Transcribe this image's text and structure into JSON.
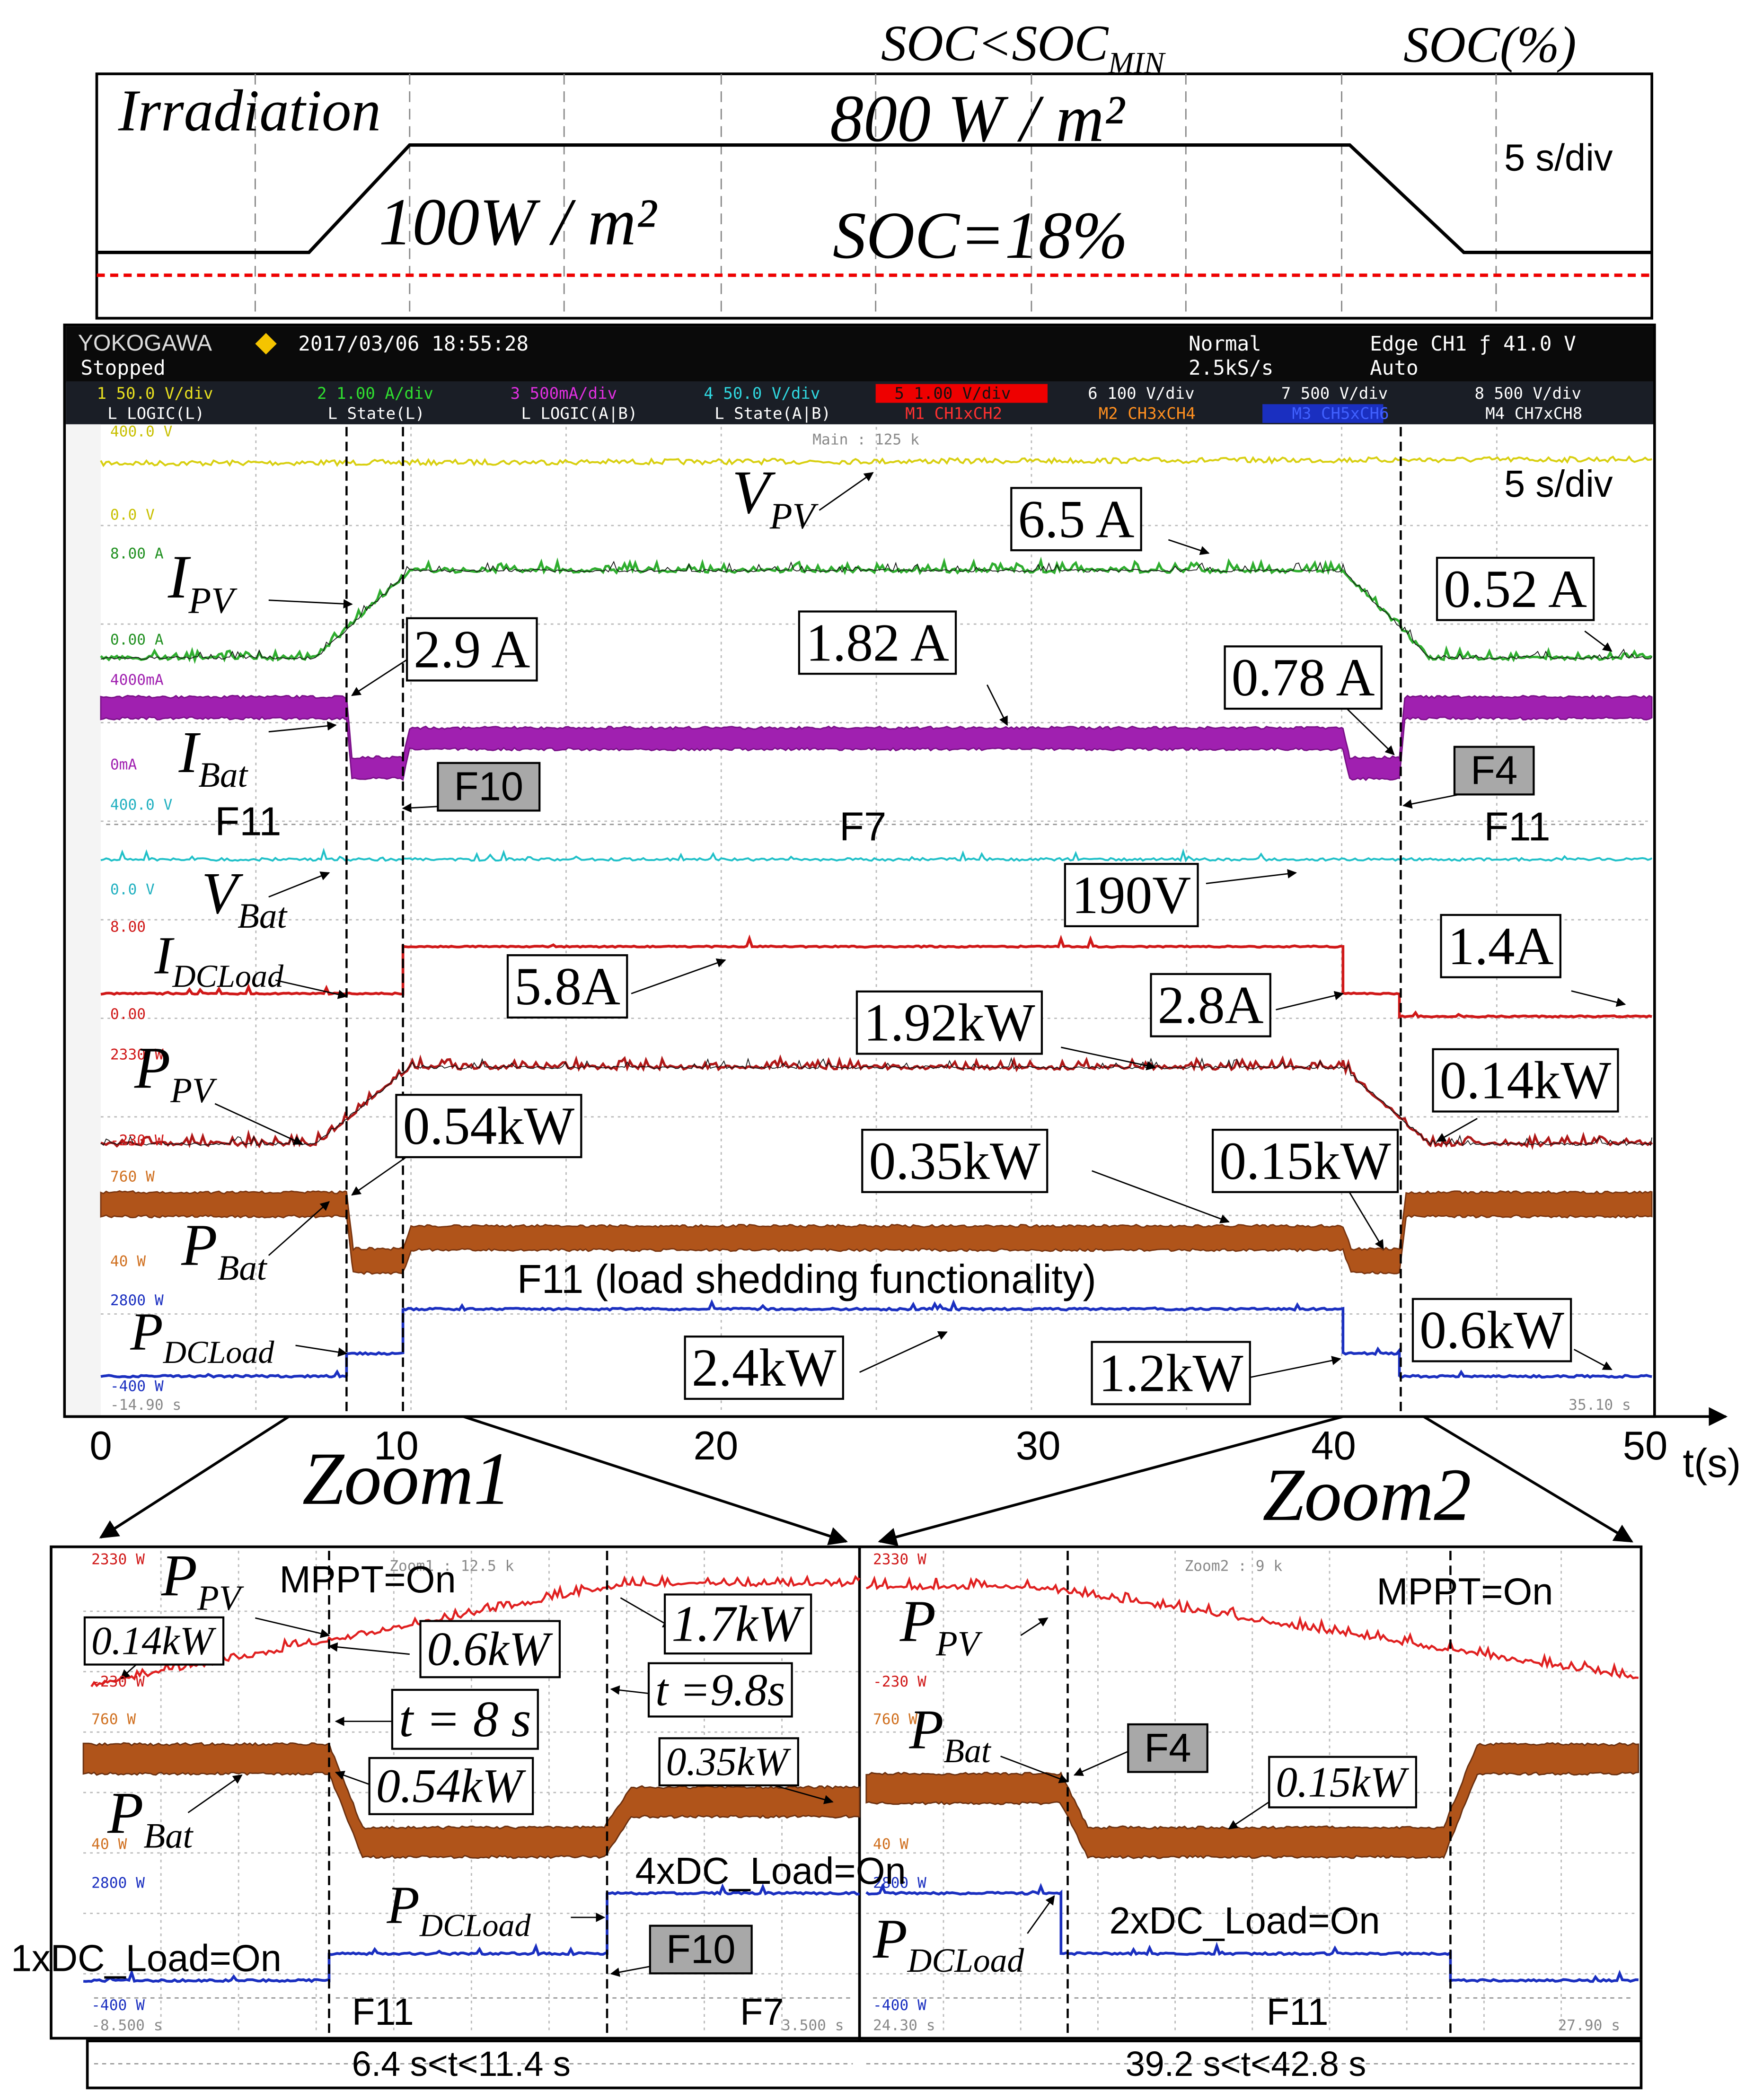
{
  "top_panel": {
    "irradiation": "Irradiation",
    "high": "800 W / m²",
    "low": "100W / m²",
    "soc": "SOC=18%",
    "soc_min": {
      "main": "SOC<SOC",
      "sub": "MIN"
    },
    "soc_axis": "SOC(%)",
    "time_div": "5 s/div"
  },
  "scope": {
    "brand": "YOKOGAWA",
    "status": "Stopped",
    "datetime": "2017/03/06 18:55:28",
    "mode": "Normal",
    "rate": "2.5kS/s",
    "trigger": "Edge CH1 ƒ 41.0 V",
    "trigger_mode": "Auto",
    "channels": [
      "1 50.0 V/div",
      "2 1.00 A/div",
      "3 500mA/div",
      "4 50.0 V/div",
      "5 1.00 V/div",
      "6 100 V/div",
      "7 500 V/div",
      "8 500 V/div"
    ],
    "logic": [
      "L LOGIC(L)",
      "L State(L)",
      "L LOGIC(A|B)",
      "L State(A|B)",
      "M1 CH1xCH2",
      "M2 CH3xCH4",
      "M3 CH5xCH6",
      "M4 CH7xCH8"
    ],
    "main_zoom": "Main : 125 k",
    "start": "-14.90 s",
    "end": "35.10 s",
    "time_div": "5 s/div",
    "scale_labels": [
      "400.0 V",
      "0.0 V",
      "8.00 A",
      "0.00 A",
      "4000mA",
      "0mA",
      "400.0 V",
      "0.0 V",
      "8.00",
      "0.00",
      "2330 W",
      "-230 W",
      "760 W",
      "40 W",
      "2800 W",
      "-400 W"
    ],
    "signals": {
      "v_pv": {
        "main": "V",
        "sub": "PV"
      },
      "i_pv": {
        "main": "I",
        "sub": "PV"
      },
      "i_bat": {
        "main": "I",
        "sub": "Bat"
      },
      "v_bat": {
        "main": "V",
        "sub": "Bat"
      },
      "i_dcload": {
        "main": "I",
        "sub": "DCLoad"
      },
      "p_pv": {
        "main": "P",
        "sub": "PV"
      },
      "p_bat": {
        "main": "P",
        "sub": "Bat"
      },
      "p_dcload": {
        "main": "P",
        "sub": "DCLoad"
      }
    },
    "annotations": [
      "6.5 A",
      "0.52 A",
      "2.9 A",
      "1.82 A",
      "0.78 A",
      "190V",
      "5.8A",
      "2.8A",
      "1.4A",
      "1.92kW",
      "0.14kW",
      "0.54kW",
      "0.35kW",
      "0.15kW",
      "2.4kW",
      "1.2kW",
      "0.6kW"
    ],
    "flags": [
      "F10",
      "F4"
    ],
    "phases": [
      "F11",
      "F7",
      "F11"
    ],
    "note": "F11 (load shedding functionality)"
  },
  "time_axis": {
    "ticks": [
      "0",
      "10",
      "20",
      "30",
      "40",
      "50"
    ],
    "label": "t(s)"
  },
  "zoom1": {
    "title": "Zoom1",
    "scale_labels": [
      "2330 W",
      "-230 W",
      "760 W",
      "40 W",
      "2800 W",
      "-400 W"
    ],
    "start": "-8.500 s",
    "end": "3.500 s",
    "zoom_info": "Zoom1 : 12.5 k",
    "p_pv": {
      "main": "P",
      "sub": "PV"
    },
    "p_bat": {
      "main": "P",
      "sub": "Bat"
    },
    "p_dcload": {
      "main": "P",
      "sub": "DCLoad"
    },
    "mppt": "MPPT=On",
    "annotations": [
      "0.14kW",
      "0.6kW",
      "1.7kW",
      "t = 8 s",
      "t =9.8s",
      "0.54kW",
      "0.35kW"
    ],
    "load_4x": "4xDC_Load=On",
    "load_1x": "1xDC_Load=On",
    "flag": "F10",
    "phases": [
      "F11",
      "F7"
    ],
    "range": "6.4 s<t<11.4 s"
  },
  "zoom2": {
    "title": "Zoom2",
    "scale_labels": [
      "2330 W",
      "-230 W",
      "760 W",
      "40 W",
      "2800 W",
      "-400 W"
    ],
    "start": "24.30 s",
    "end": "27.90 s",
    "zoom_info": "Zoom2 : 9 k",
    "p_pv": {
      "main": "P",
      "sub": "PV"
    },
    "p_bat": {
      "main": "P",
      "sub": "Bat"
    },
    "p_dcload": {
      "main": "P",
      "sub": "DCLoad"
    },
    "mppt": "MPPT=On",
    "flag": "F4",
    "annotation": "0.15kW",
    "load_2x": "2xDC_Load=On",
    "phase": "F11",
    "range": "39.2 s<t<42.8 s"
  }
}
